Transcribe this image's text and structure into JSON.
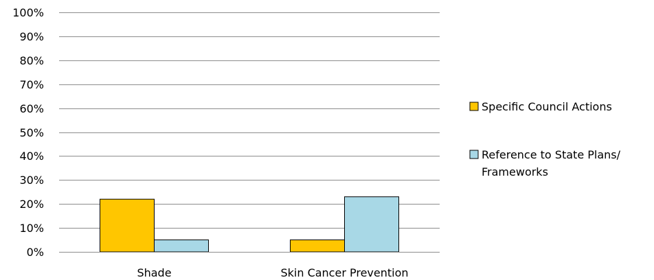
{
  "chart_data": {
    "type": "bar",
    "categories": [
      "Shade",
      "Skin Cancer Prevention"
    ],
    "series": [
      {
        "name": "Specific Council Actions",
        "values": [
          22,
          5
        ],
        "color": "#FFC600"
      },
      {
        "name": "Reference to State Plans/ Frameworks",
        "name_lines": [
          "Reference to State Plans/",
          "Frameworks"
        ],
        "values": [
          5,
          23
        ],
        "color": "#A8D8E6"
      }
    ],
    "ylim": [
      0,
      100
    ],
    "yticks": [
      "0%",
      "10%",
      "20%",
      "30%",
      "40%",
      "50%",
      "60%",
      "70%",
      "80%",
      "90%",
      "100%"
    ],
    "ytick_values": [
      0,
      10,
      20,
      30,
      40,
      50,
      60,
      70,
      80,
      90,
      100
    ],
    "grid": true,
    "legend_position": "right",
    "title": "",
    "xlabel": "",
    "ylabel": ""
  }
}
